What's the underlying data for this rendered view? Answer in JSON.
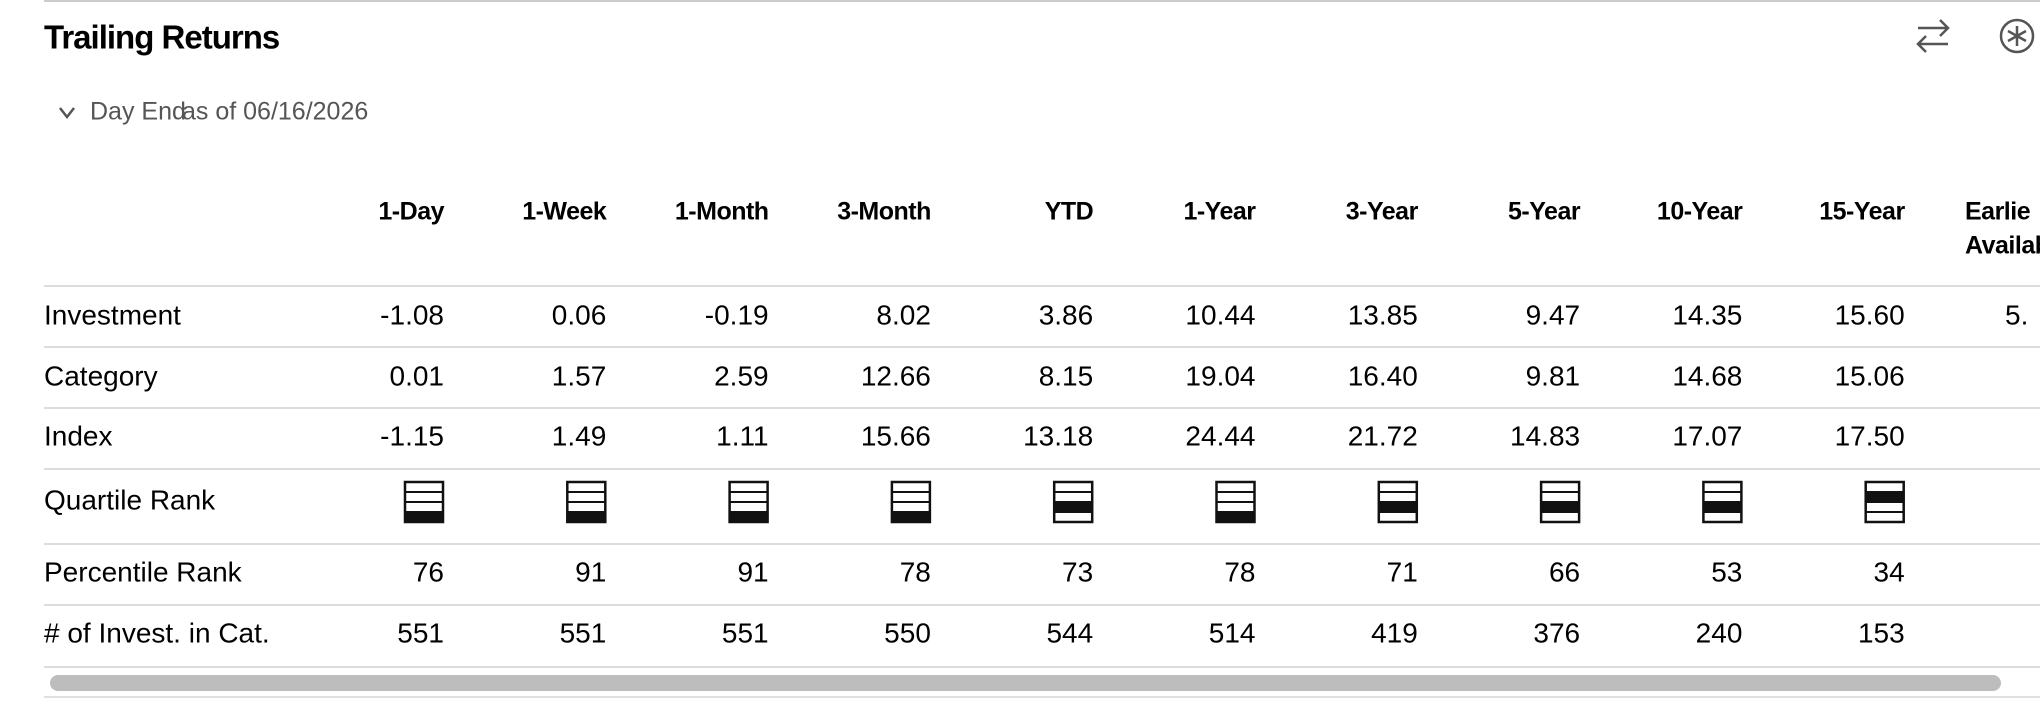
{
  "header": {
    "title": "Trailing Returns",
    "period": "Day End",
    "as_of": "as of 06/16/2026"
  },
  "table": {
    "columns": [
      "1-Day",
      "1-Week",
      "1-Month",
      "3-Month",
      "YTD",
      "1-Year",
      "3-Year",
      "5-Year",
      "10-Year",
      "15-Year",
      [
        "Earlie",
        "Availab"
      ]
    ],
    "rows": [
      {
        "label": "Investment",
        "values": [
          "-1.08",
          "0.06",
          "-0.19",
          "8.02",
          "3.86",
          "10.44",
          "13.85",
          "9.47",
          "14.35",
          "15.60",
          "5."
        ]
      },
      {
        "label": "Category",
        "values": [
          "0.01",
          "1.57",
          "2.59",
          "12.66",
          "8.15",
          "19.04",
          "16.40",
          "9.81",
          "14.68",
          "15.06"
        ]
      },
      {
        "label": "Index",
        "values": [
          "-1.15",
          "1.49",
          "1.11",
          "15.66",
          "13.18",
          "24.44",
          "21.72",
          "14.83",
          "17.07",
          "17.50"
        ]
      },
      {
        "label": "Quartile Rank",
        "values": [
          4,
          4,
          4,
          4,
          3,
          4,
          3,
          3,
          3,
          2
        ]
      },
      {
        "label": "Percentile Rank",
        "values": [
          "76",
          "91",
          "91",
          "78",
          "73",
          "78",
          "71",
          "66",
          "53",
          "34"
        ]
      },
      {
        "label": "# of Invest. in Cat.",
        "values": [
          "551",
          "551",
          "551",
          "550",
          "544",
          "514",
          "419",
          "376",
          "240",
          "153"
        ]
      }
    ]
  }
}
